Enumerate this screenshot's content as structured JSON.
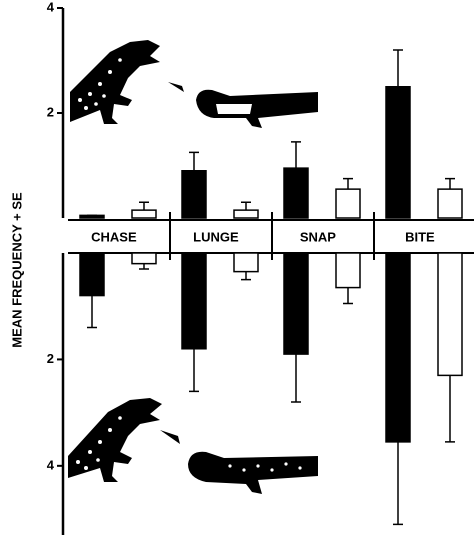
{
  "chart_data": [
    {
      "type": "bar",
      "y_label": "MEAN FREQUENCY + SE",
      "categories": [
        "CHASE",
        "LUNGE",
        "SNAP",
        "BITE"
      ],
      "ylim": [
        0,
        4
      ],
      "yticks": [
        2,
        4
      ],
      "series": [
        {
          "color": "#000000",
          "values": [
            0.05,
            0.9,
            0.95,
            2.5
          ],
          "errors": [
            0,
            0.35,
            0.5,
            0.7
          ]
        },
        {
          "color": "#ffffff",
          "values": [
            0.15,
            0.15,
            0.55,
            0.55
          ],
          "errors": [
            0.15,
            0.15,
            0.2,
            0.2
          ]
        }
      ]
    },
    {
      "type": "bar",
      "inverted": true,
      "ylim": [
        0,
        5.3
      ],
      "yticks": [
        2,
        4
      ],
      "series": [
        {
          "color": "#000000",
          "values": [
            0.8,
            1.8,
            1.9,
            3.55
          ],
          "errors": [
            0.6,
            0.8,
            0.9,
            1.55
          ]
        },
        {
          "color": "#ffffff",
          "values": [
            0.2,
            0.35,
            0.65,
            2.3
          ],
          "errors": [
            0.1,
            0.15,
            0.3,
            1.25
          ]
        }
      ]
    }
  ]
}
